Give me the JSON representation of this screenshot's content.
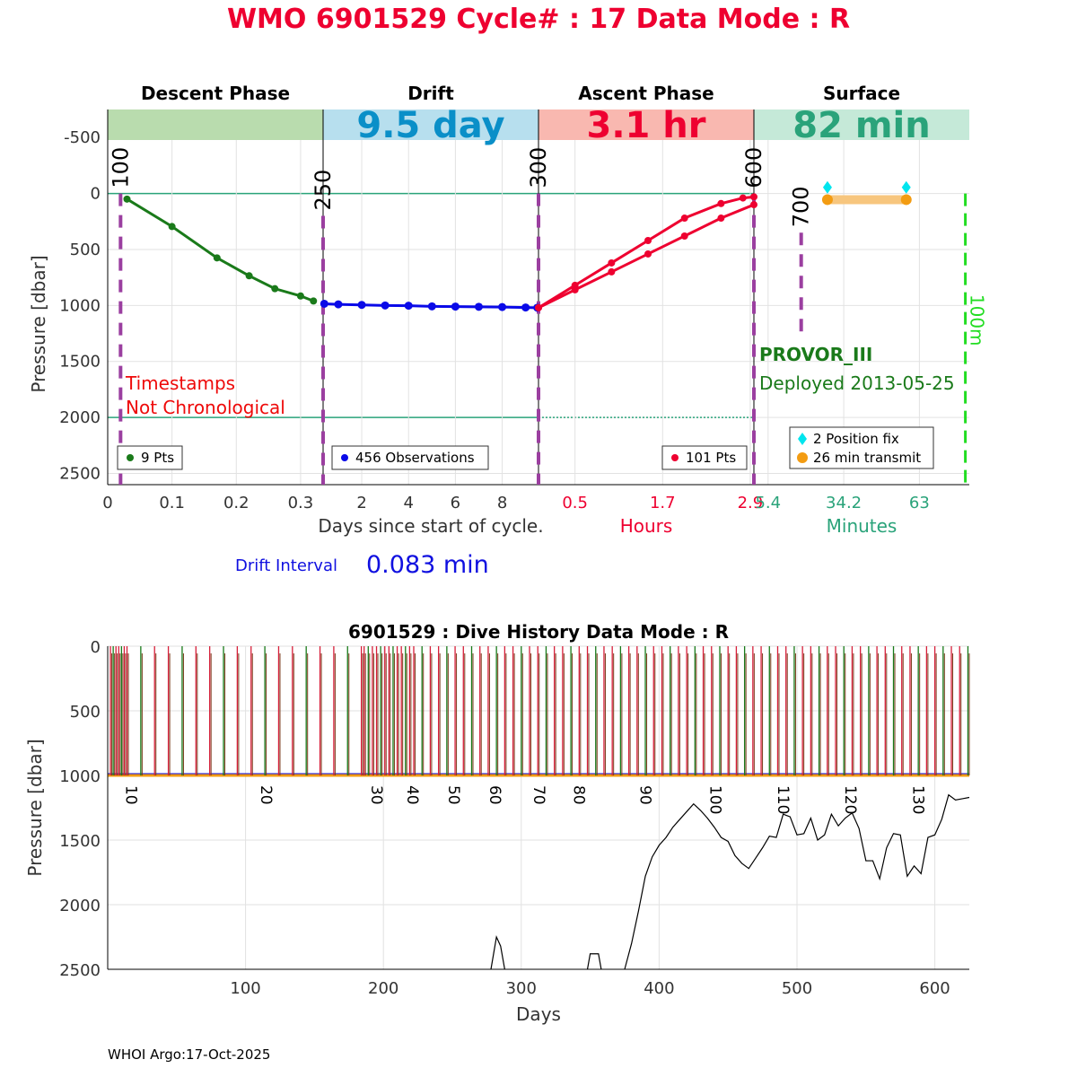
{
  "header": {
    "title": "WMO 6901529   Cycle# : 17   Data Mode : R",
    "drift_interval_label": "Drift Interval",
    "drift_interval_value": "0.083 min",
    "footer": "WHOI Argo:17-Oct-2025"
  },
  "colors": {
    "title": "#ee0030",
    "descent": "#1a7a1a",
    "drift": "#0a0ae8",
    "ascent": "#ee0030",
    "surface_teal": "#2aa37a",
    "phase_purple": "#9b3fa0",
    "cyan": "#00e5ee",
    "orange": "#f39c12",
    "green_dash": "#22dd22"
  },
  "chart_data": [
    {
      "type": "line",
      "ylabel": "Pressure [dbar]",
      "ylim": [
        2600,
        -750
      ],
      "yticks": [
        "-500",
        "0",
        "500",
        "1000",
        "1500",
        "2000",
        "2500"
      ],
      "ytick_values": [
        -500,
        0,
        500,
        1000,
        1500,
        2000,
        2500
      ],
      "grid": true,
      "phases": [
        {
          "name": "Descent Phase",
          "band_text": "",
          "band_color": "#b9dcae",
          "text_color": "#1a7a1a"
        },
        {
          "name": "Drift",
          "band_text": "9.5 day",
          "band_color": "#b7dfee",
          "text_color": "#0a8fc8"
        },
        {
          "name": "Ascent Phase",
          "band_text": "3.1 hr",
          "band_color": "#f9b8b0",
          "text_color": "#ee0030"
        },
        {
          "name": "Surface",
          "band_text": "82 min",
          "band_color": "#c5e9d8",
          "text_color": "#2aa37a"
        }
      ],
      "panels": [
        {
          "id": "descent",
          "xlabel": "",
          "xlim": [
            0,
            0.335
          ],
          "xticks": [
            "0",
            "0.1",
            "0.2",
            "0.3"
          ],
          "xtick_values": [
            0,
            0.1,
            0.2,
            0.3
          ],
          "series": [
            {
              "x": [
                0.03,
                0.1,
                0.17,
                0.22,
                0.26,
                0.3,
                0.32
              ],
              "y": [
                50,
                295,
                575,
                735,
                850,
                915,
                960
              ]
            }
          ],
          "legend": "9 Pts",
          "vlines": [
            {
              "x": 0.02,
              "label": "100"
            }
          ],
          "annotation": [
            "Timestamps",
            "Not Chronological"
          ]
        },
        {
          "id": "drift",
          "xlabel": "Days since start of cycle.",
          "xlim": [
            0.35,
            9.55
          ],
          "xticks": [
            "2",
            "4",
            "6",
            "8"
          ],
          "xtick_values": [
            2,
            4,
            6,
            8
          ],
          "series": [
            {
              "x": [
                0.4,
                1,
                2,
                3,
                4,
                5,
                6,
                7,
                8,
                9,
                9.5
              ],
              "y": [
                985,
                990,
                995,
                1000,
                1002,
                1008,
                1010,
                1012,
                1014,
                1018,
                1020
              ]
            }
          ],
          "legend": "456 Observations",
          "vlines": [
            {
              "x": 0.35,
              "label": "250"
            }
          ]
        },
        {
          "id": "ascent",
          "xlabel": "Hours",
          "xlim": [
            0,
            2.95
          ],
          "xticks": [
            "0.5",
            "1.7",
            "2.9"
          ],
          "xtick_values": [
            0.5,
            1.7,
            2.9
          ],
          "series": [
            {
              "x": [
                0.0,
                0.5,
                1.0,
                1.5,
                2.0,
                2.5,
                2.8,
                2.95
              ],
              "y": [
                1020,
                820,
                620,
                420,
                220,
                90,
                40,
                30
              ]
            },
            {
              "x": [
                0.0,
                0.5,
                1.0,
                1.5,
                2.0,
                2.5,
                2.95
              ],
              "y": [
                1020,
                860,
                700,
                540,
                380,
                220,
                100
              ]
            }
          ],
          "legend": "101 Pts",
          "vlines": [
            {
              "x": 0.0,
              "label": "300"
            },
            {
              "x": 2.95,
              "label": "600"
            }
          ]
        },
        {
          "id": "surface",
          "xlabel": "Minutes",
          "xlim": [
            0,
            82
          ],
          "xticks": [
            "5.4",
            "34.2",
            "63"
          ],
          "xtick_values": [
            5.4,
            34.2,
            63
          ],
          "position_fix": {
            "x": [
              28,
              58
            ],
            "y": [
              -55,
              -55
            ]
          },
          "transmit": {
            "x": [
              28,
              58
            ],
            "y": [
              55,
              55
            ]
          },
          "legend": [
            "2 Position fix",
            "26 min transmit"
          ],
          "vlines": [
            {
              "x": 18,
              "label": "700",
              "y_top": 350,
              "y_bottom": 1310
            },
            {
              "x": 80.5,
              "label": "100m"
            }
          ],
          "float_type": "PROVOR_III",
          "deployed": "Deployed 2013-05-25"
        }
      ]
    },
    {
      "type": "line",
      "title": "6901529 : Dive History      Data Mode : R",
      "xlabel": "Days",
      "ylabel": "Pressure [dbar]",
      "xlim": [
        0,
        625
      ],
      "ylim": [
        2500,
        0
      ],
      "xticks": [
        "100",
        "200",
        "300",
        "400",
        "500",
        "600"
      ],
      "xtick_values": [
        100,
        200,
        300,
        400,
        500,
        600
      ],
      "yticks": [
        "0",
        "500",
        "1000",
        "1500",
        "2000",
        "2500"
      ],
      "ytick_values": [
        0,
        500,
        1000,
        1500,
        2000,
        2500
      ],
      "grid": true,
      "profile_days": [
        2,
        4,
        6,
        8,
        10,
        12,
        14,
        24,
        34,
        44,
        54,
        64,
        74,
        84,
        94,
        104,
        114,
        124,
        134,
        144,
        154,
        164,
        174,
        184,
        186,
        189,
        192,
        195,
        198,
        201,
        204,
        207,
        210,
        213,
        216,
        219,
        222,
        228,
        234,
        240,
        246,
        252,
        258,
        264,
        270,
        276,
        282,
        288,
        294,
        300,
        306,
        312,
        318,
        324,
        330,
        336,
        342,
        348,
        354,
        360,
        366,
        372,
        378,
        384,
        390,
        396,
        402,
        408,
        414,
        420,
        426,
        432,
        438,
        444,
        450,
        456,
        462,
        468,
        474,
        480,
        486,
        492,
        498,
        504,
        510,
        516,
        522,
        528,
        534,
        540,
        546,
        552,
        558,
        564,
        570,
        576,
        582,
        588,
        594,
        600,
        606,
        612,
        618,
        624
      ],
      "cycle_labels": [
        {
          "x": 12,
          "label": "10"
        },
        {
          "x": 110,
          "label": "20"
        },
        {
          "x": 190,
          "label": "30"
        },
        {
          "x": 216,
          "label": "40"
        },
        {
          "x": 246,
          "label": "50"
        },
        {
          "x": 276,
          "label": "60"
        },
        {
          "x": 308,
          "label": "70"
        },
        {
          "x": 337,
          "label": "80"
        },
        {
          "x": 385,
          "label": "90"
        },
        {
          "x": 436,
          "label": "100"
        },
        {
          "x": 485,
          "label": "110"
        },
        {
          "x": 534,
          "label": "120"
        },
        {
          "x": 583,
          "label": "130"
        }
      ],
      "bathymetry": {
        "x": [
          375,
          380,
          385,
          390,
          395,
          400,
          405,
          410,
          415,
          420,
          425,
          430,
          435,
          440,
          445,
          450,
          455,
          460,
          465,
          470,
          475,
          480,
          485,
          490,
          495,
          500,
          505,
          510,
          515,
          520,
          525,
          530,
          535,
          540,
          545,
          550,
          555,
          560,
          565,
          570,
          575,
          580,
          585,
          590,
          595,
          600,
          605,
          610,
          615,
          620,
          625
        ],
        "y": [
          2500,
          2300,
          2050,
          1780,
          1630,
          1540,
          1480,
          1400,
          1340,
          1280,
          1220,
          1270,
          1330,
          1400,
          1480,
          1510,
          1620,
          1680,
          1720,
          1640,
          1560,
          1470,
          1480,
          1300,
          1320,
          1460,
          1450,
          1330,
          1500,
          1460,
          1300,
          1390,
          1330,
          1290,
          1410,
          1660,
          1660,
          1800,
          1560,
          1450,
          1460,
          1780,
          1700,
          1760,
          1480,
          1460,
          1340,
          1150,
          1190,
          1180,
          1170
        ]
      },
      "bathymetry_segments": [
        {
          "x": [
            278,
            282,
            285,
            288
          ],
          "y": [
            2500,
            2250,
            2320,
            2500
          ]
        },
        {
          "x": [
            348,
            350,
            356,
            358
          ],
          "y": [
            2500,
            2380,
            2380,
            2500
          ]
        }
      ]
    }
  ]
}
